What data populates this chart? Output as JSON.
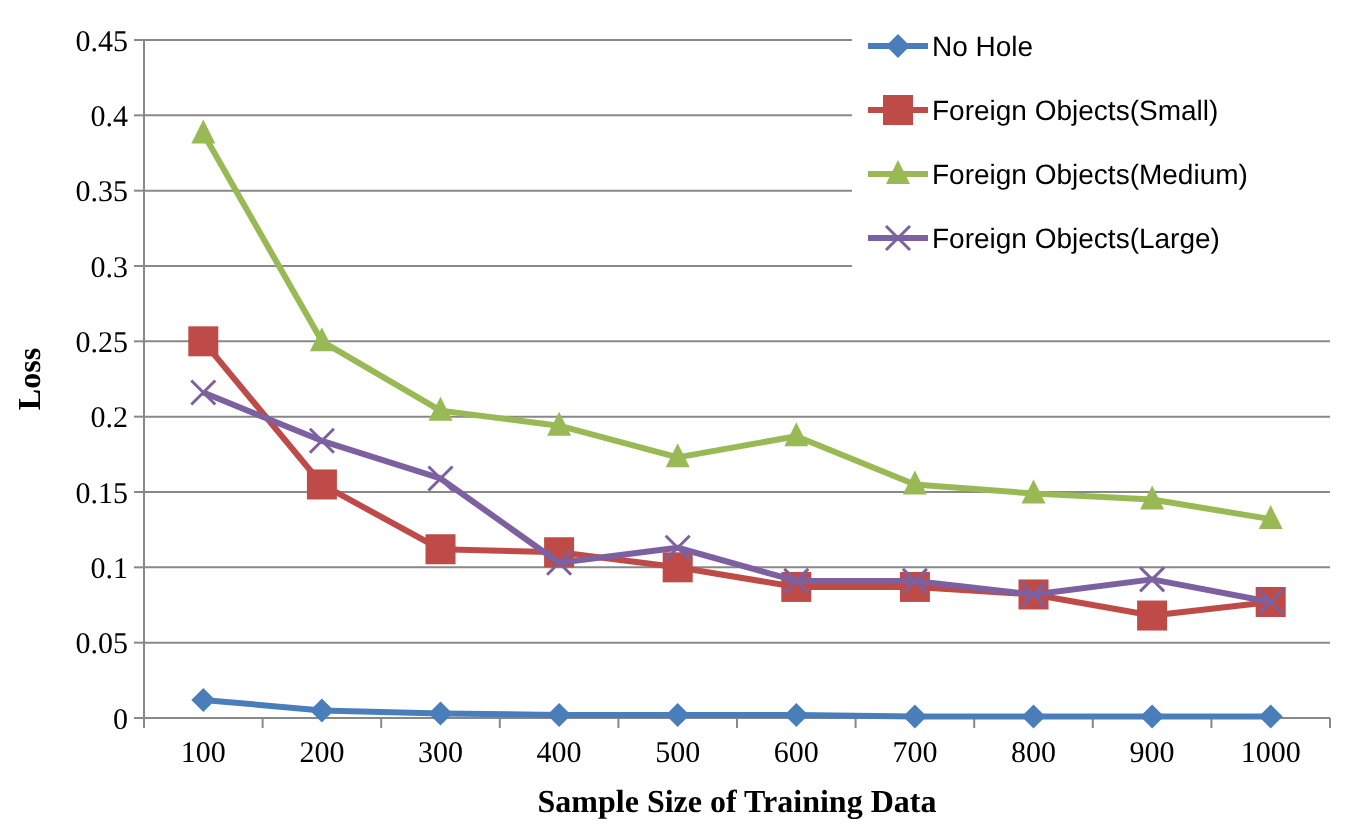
{
  "chart_data": {
    "type": "line",
    "xlabel": "Sample Size of Training Data",
    "ylabel": "Loss",
    "categories": [
      "100",
      "200",
      "300",
      "400",
      "500",
      "600",
      "700",
      "800",
      "900",
      "1000"
    ],
    "ylim": [
      0,
      0.45
    ],
    "yticks": [
      0,
      0.05,
      0.1,
      0.15,
      0.2,
      0.25,
      0.3,
      0.35,
      0.4,
      0.45
    ],
    "grid": "y",
    "legend": "top right",
    "series": [
      {
        "name": "No Hole",
        "color": "#4a7ebb",
        "marker": "diamond",
        "values": [
          0.012,
          0.005,
          0.003,
          0.002,
          0.002,
          0.002,
          0.001,
          0.001,
          0.001,
          0.001
        ]
      },
      {
        "name": "Foreign Objects(Small)",
        "color": "#be4b48",
        "marker": "square",
        "values": [
          0.25,
          0.155,
          0.112,
          0.11,
          0.1,
          0.087,
          0.087,
          0.082,
          0.068,
          0.077
        ]
      },
      {
        "name": "Foreign Objects(Medium)",
        "color": "#98b954",
        "marker": "triangle",
        "values": [
          0.388,
          0.25,
          0.204,
          0.194,
          0.173,
          0.187,
          0.155,
          0.149,
          0.145,
          0.132
        ]
      },
      {
        "name": "Foreign Objects(Large)",
        "color": "#7d60a0",
        "marker": "cross",
        "values": [
          0.216,
          0.184,
          0.159,
          0.103,
          0.113,
          0.091,
          0.091,
          0.082,
          0.092,
          0.077
        ]
      }
    ]
  }
}
